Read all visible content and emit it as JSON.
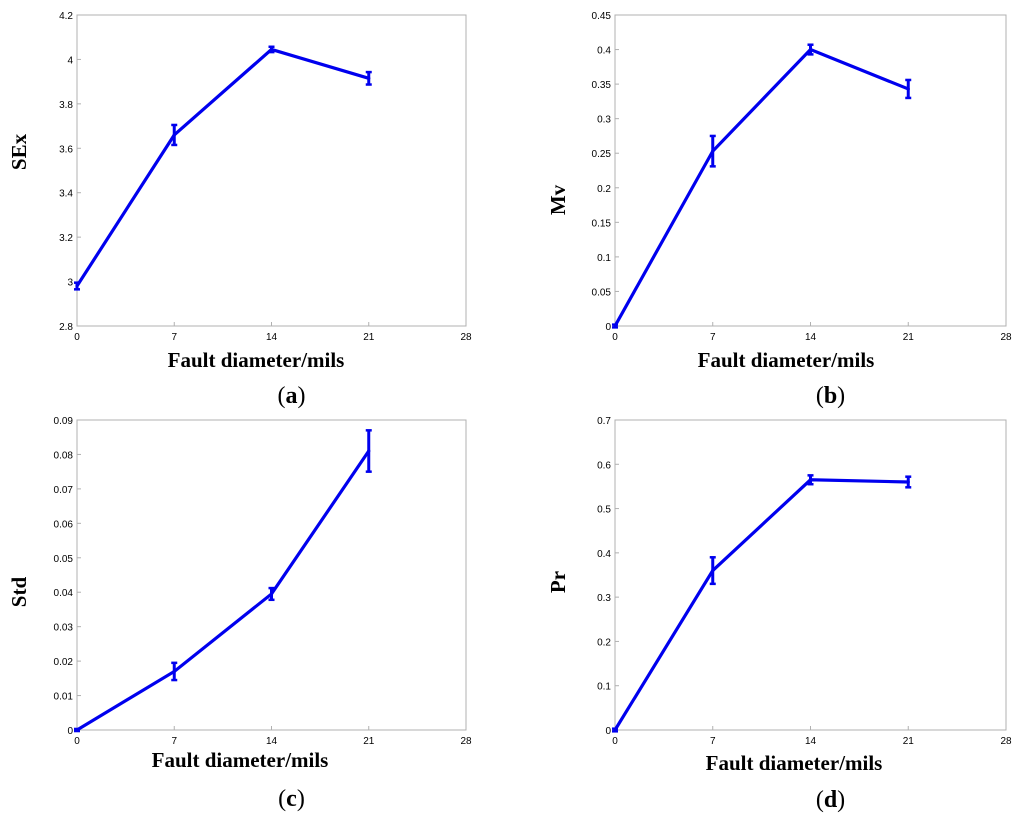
{
  "chart_data": [
    {
      "type": "line",
      "panel": "a",
      "x": [
        0,
        7,
        14,
        21
      ],
      "values": [
        2.98,
        3.66,
        4.045,
        3.915
      ],
      "err": [
        0.015,
        0.045,
        0.012,
        0.028
      ],
      "xlim": [
        0,
        28
      ],
      "ylim": [
        2.8,
        4.2
      ],
      "xticks": [
        "0",
        "7",
        "14",
        "21",
        "28"
      ],
      "yticks": [
        "2.8",
        "3",
        "3.2",
        "3.4",
        "3.6",
        "3.8",
        "4",
        "4.2"
      ],
      "xlabel": "Fault diameter/mils",
      "ylabel": "SEx",
      "caption_open": "(",
      "caption_letter": "a",
      "caption_close": ")",
      "color": "#0000ee"
    },
    {
      "type": "line",
      "panel": "b",
      "x": [
        0,
        7,
        14,
        21
      ],
      "values": [
        0.0,
        0.253,
        0.4,
        0.343
      ],
      "err": [
        0.002,
        0.022,
        0.007,
        0.013
      ],
      "xlim": [
        0,
        28
      ],
      "ylim": [
        0,
        0.45
      ],
      "xticks": [
        "0",
        "7",
        "14",
        "21",
        "28"
      ],
      "yticks": [
        "0",
        "0.05",
        "0.1",
        "0.15",
        "0.2",
        "0.25",
        "0.3",
        "0.35",
        "0.4",
        "0.45"
      ],
      "xlabel": "Fault diameter/mils",
      "ylabel": "Mv",
      "caption_open": "(",
      "caption_letter": "b",
      "caption_close": ")",
      "color": "#0000ee"
    },
    {
      "type": "line",
      "panel": "c",
      "x": [
        0,
        7,
        14,
        21
      ],
      "values": [
        0.0,
        0.017,
        0.0395,
        0.081
      ],
      "err": [
        0.0003,
        0.0025,
        0.0017,
        0.006
      ],
      "xlim": [
        0,
        28
      ],
      "ylim": [
        0,
        0.09
      ],
      "xticks": [
        "0",
        "7",
        "14",
        "21",
        "28"
      ],
      "yticks": [
        "0",
        "0.01",
        "0.02",
        "0.03",
        "0.04",
        "0.05",
        "0.06",
        "0.07",
        "0.08",
        "0.09"
      ],
      "xlabel": "Fault diameter/mils",
      "ylabel": "Std",
      "caption_open": "(",
      "caption_letter": "c",
      "caption_close": ")",
      "color": "#0000ee"
    },
    {
      "type": "line",
      "panel": "d",
      "x": [
        0,
        7,
        14,
        21
      ],
      "values": [
        0.0,
        0.36,
        0.565,
        0.56
      ],
      "err": [
        0.003,
        0.03,
        0.01,
        0.012
      ],
      "xlim": [
        0,
        28
      ],
      "ylim": [
        0,
        0.7
      ],
      "xticks": [
        "0",
        "7",
        "14",
        "21",
        "28"
      ],
      "yticks": [
        "0",
        "0.1",
        "0.2",
        "0.3",
        "0.4",
        "0.5",
        "0.6",
        "0.7"
      ],
      "xlabel": "Fault diameter/mils",
      "ylabel": "Pr",
      "caption_open": "(",
      "caption_letter": "d",
      "caption_close": ")",
      "color": "#0000ee"
    }
  ]
}
